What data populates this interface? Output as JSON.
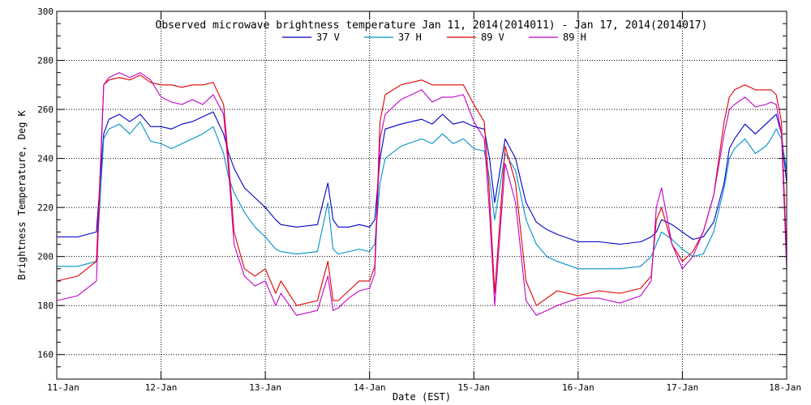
{
  "chart_data": {
    "type": "line",
    "title": "Observed microwave brightness temperature Jan 11, 2014(2014011) - Jan 17, 2014(2014017)",
    "xlabel": "Date (EST)",
    "ylabel": "Brightness Temperature, Deg K",
    "x_unit": "days",
    "xlim": [
      0,
      7
    ],
    "ylim": [
      150,
      300
    ],
    "x_ticks": [
      0,
      1,
      2,
      3,
      4,
      5,
      6,
      7
    ],
    "x_tick_labels": [
      "11-Jan",
      "12-Jan",
      "13-Jan",
      "14-Jan",
      "15-Jan",
      "16-Jan",
      "17-Jan",
      "18-Jan"
    ],
    "y_ticks": [
      160,
      180,
      200,
      220,
      240,
      260,
      280,
      300
    ],
    "y_tick_labels": [
      "160",
      "180",
      "200",
      "220",
      "240",
      "260",
      "280",
      "300"
    ],
    "grid": true,
    "legend_position": "top-center",
    "series": [
      {
        "name": "37 V",
        "color": "#0000c8",
        "x": [
          0.0,
          0.2,
          0.38,
          0.45,
          0.5,
          0.6,
          0.7,
          0.8,
          0.9,
          1.0,
          1.1,
          1.2,
          1.3,
          1.4,
          1.5,
          1.6,
          1.65,
          1.7,
          1.8,
          1.9,
          2.0,
          2.1,
          2.15,
          2.3,
          2.5,
          2.6,
          2.65,
          2.7,
          2.8,
          2.9,
          3.0,
          3.05,
          3.1,
          3.15,
          3.3,
          3.5,
          3.6,
          3.7,
          3.8,
          3.9,
          4.0,
          4.1,
          4.15,
          4.2,
          4.3,
          4.4,
          4.5,
          4.6,
          4.7,
          4.8,
          5.0,
          5.2,
          5.4,
          5.6,
          5.7,
          5.75,
          5.8,
          5.9,
          6.0,
          6.1,
          6.2,
          6.3,
          6.4,
          6.45,
          6.5,
          6.6,
          6.7,
          6.8,
          6.85,
          6.9,
          6.95,
          7.0
        ],
        "y": [
          208,
          208,
          210,
          250,
          256,
          258,
          255,
          258,
          253,
          253,
          252,
          254,
          255,
          257,
          259,
          250,
          242,
          236,
          228,
          224,
          220,
          215,
          213,
          212,
          213,
          230,
          215,
          212,
          212,
          213,
          212,
          215,
          240,
          252,
          254,
          256,
          254,
          258,
          254,
          255,
          253,
          252,
          240,
          222,
          248,
          240,
          222,
          214,
          211,
          209,
          206,
          206,
          205,
          206,
          208,
          210,
          215,
          213,
          210,
          207,
          208,
          214,
          230,
          244,
          248,
          254,
          250,
          254,
          256,
          258,
          250,
          230
        ]
      },
      {
        "name": "37 H",
        "color": "#0090c8",
        "x": [
          0.0,
          0.2,
          0.38,
          0.45,
          0.5,
          0.6,
          0.7,
          0.8,
          0.9,
          1.0,
          1.1,
          1.2,
          1.3,
          1.4,
          1.5,
          1.6,
          1.65,
          1.7,
          1.8,
          1.9,
          2.0,
          2.1,
          2.15,
          2.3,
          2.5,
          2.6,
          2.65,
          2.7,
          2.8,
          2.9,
          3.0,
          3.05,
          3.1,
          3.15,
          3.3,
          3.5,
          3.6,
          3.7,
          3.8,
          3.9,
          4.0,
          4.1,
          4.15,
          4.2,
          4.3,
          4.4,
          4.5,
          4.6,
          4.7,
          4.8,
          5.0,
          5.2,
          5.4,
          5.6,
          5.7,
          5.75,
          5.8,
          5.9,
          6.0,
          6.1,
          6.2,
          6.3,
          6.4,
          6.45,
          6.5,
          6.6,
          6.7,
          6.8,
          6.85,
          6.9,
          6.95,
          7.0
        ],
        "y": [
          196,
          196,
          198,
          248,
          252,
          254,
          250,
          255,
          247,
          246,
          244,
          246,
          248,
          250,
          253,
          242,
          232,
          226,
          218,
          212,
          208,
          203,
          202,
          201,
          202,
          222,
          203,
          201,
          202,
          203,
          202,
          205,
          230,
          240,
          245,
          248,
          246,
          250,
          246,
          248,
          244,
          243,
          232,
          215,
          242,
          235,
          215,
          205,
          200,
          198,
          195,
          195,
          195,
          196,
          200,
          205,
          210,
          207,
          203,
          200,
          201,
          210,
          228,
          240,
          244,
          248,
          242,
          245,
          248,
          252,
          248,
          235
        ]
      },
      {
        "name": "89 V",
        "color": "#e00000",
        "x": [
          0.0,
          0.2,
          0.38,
          0.45,
          0.5,
          0.6,
          0.7,
          0.8,
          0.9,
          1.0,
          1.1,
          1.2,
          1.3,
          1.4,
          1.5,
          1.6,
          1.65,
          1.7,
          1.8,
          1.9,
          2.0,
          2.1,
          2.15,
          2.3,
          2.5,
          2.6,
          2.65,
          2.7,
          2.8,
          2.9,
          3.0,
          3.05,
          3.1,
          3.15,
          3.3,
          3.5,
          3.6,
          3.7,
          3.8,
          3.9,
          4.0,
          4.1,
          4.15,
          4.2,
          4.3,
          4.4,
          4.5,
          4.6,
          4.7,
          4.8,
          5.0,
          5.2,
          5.4,
          5.6,
          5.7,
          5.75,
          5.8,
          5.9,
          6.0,
          6.1,
          6.2,
          6.3,
          6.4,
          6.45,
          6.5,
          6.6,
          6.7,
          6.8,
          6.85,
          6.9,
          6.95,
          7.0
        ],
        "y": [
          190,
          192,
          198,
          270,
          272,
          273,
          272,
          274,
          271,
          270,
          270,
          269,
          270,
          270,
          271,
          262,
          238,
          210,
          195,
          192,
          195,
          185,
          190,
          180,
          182,
          198,
          182,
          182,
          186,
          190,
          190,
          196,
          255,
          266,
          270,
          272,
          270,
          270,
          270,
          270,
          262,
          255,
          225,
          185,
          245,
          230,
          190,
          180,
          183,
          186,
          184,
          186,
          185,
          187,
          192,
          215,
          220,
          205,
          198,
          202,
          210,
          225,
          255,
          265,
          268,
          270,
          268,
          268,
          268,
          266,
          255,
          200
        ]
      },
      {
        "name": "89 H",
        "color": "#c000c8",
        "x": [
          0.0,
          0.2,
          0.38,
          0.45,
          0.5,
          0.6,
          0.7,
          0.8,
          0.9,
          1.0,
          1.1,
          1.2,
          1.3,
          1.4,
          1.5,
          1.6,
          1.65,
          1.7,
          1.8,
          1.9,
          2.0,
          2.1,
          2.15,
          2.3,
          2.5,
          2.6,
          2.65,
          2.7,
          2.8,
          2.9,
          3.0,
          3.05,
          3.1,
          3.15,
          3.3,
          3.5,
          3.6,
          3.7,
          3.8,
          3.9,
          4.0,
          4.1,
          4.15,
          4.2,
          4.3,
          4.4,
          4.5,
          4.6,
          4.7,
          4.8,
          5.0,
          5.2,
          5.4,
          5.6,
          5.7,
          5.75,
          5.8,
          5.9,
          6.0,
          6.1,
          6.2,
          6.3,
          6.4,
          6.45,
          6.5,
          6.6,
          6.7,
          6.8,
          6.85,
          6.9,
          6.95,
          7.0
        ],
        "y": [
          182,
          184,
          190,
          270,
          273,
          275,
          273,
          275,
          272,
          265,
          263,
          262,
          264,
          262,
          266,
          258,
          234,
          205,
          192,
          188,
          190,
          180,
          185,
          176,
          178,
          192,
          178,
          179,
          183,
          186,
          187,
          193,
          248,
          258,
          264,
          268,
          263,
          265,
          265,
          266,
          255,
          248,
          218,
          180,
          238,
          222,
          182,
          176,
          178,
          180,
          183,
          183,
          181,
          184,
          190,
          220,
          228,
          205,
          195,
          200,
          210,
          225,
          250,
          260,
          262,
          265,
          261,
          262,
          263,
          262,
          250,
          195
        ]
      }
    ]
  }
}
